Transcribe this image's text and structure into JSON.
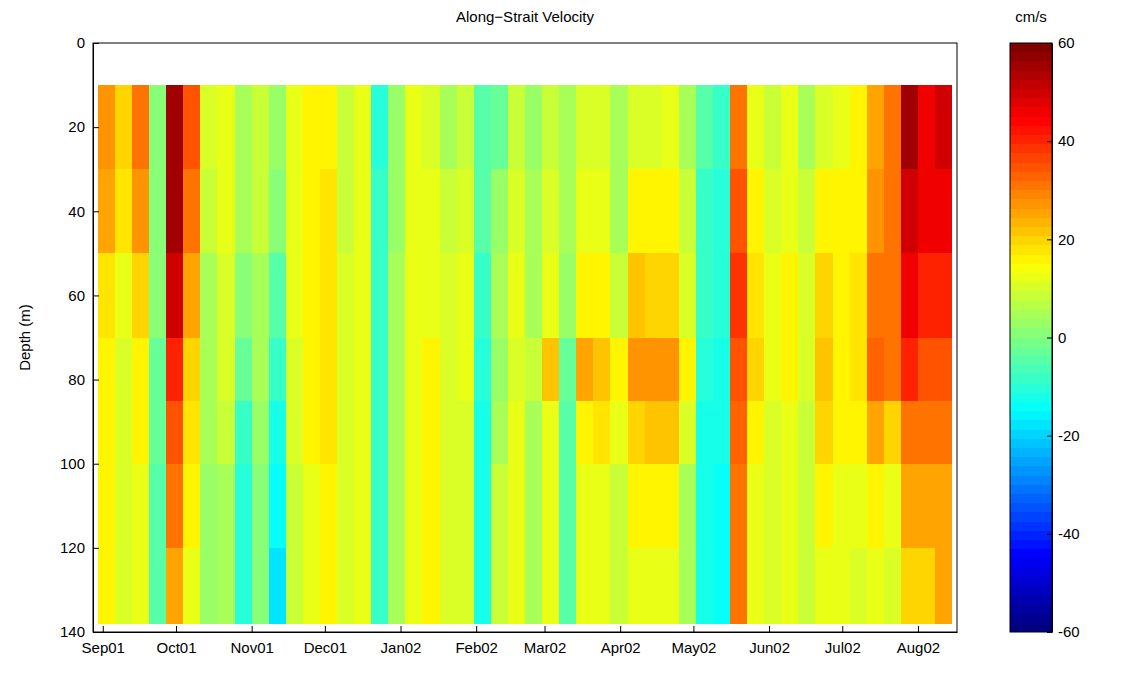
{
  "chart_data": {
    "type": "heatmap",
    "title": "Along−Strait Velocity",
    "y_label": "Depth (m)",
    "x": [
      "2001-08-30",
      "2001-09-06",
      "2001-09-13",
      "2001-09-20",
      "2001-09-27",
      "2001-10-04",
      "2001-10-11",
      "2001-10-18",
      "2001-10-25",
      "2001-11-01",
      "2001-11-08",
      "2001-11-15",
      "2001-11-22",
      "2001-11-29",
      "2001-12-06",
      "2001-12-13",
      "2001-12-20",
      "2001-12-27",
      "2002-01-03",
      "2002-01-10",
      "2002-01-17",
      "2002-01-24",
      "2002-01-31",
      "2002-02-07",
      "2002-02-14",
      "2002-02-21",
      "2002-02-28",
      "2002-03-07",
      "2002-03-14",
      "2002-03-21",
      "2002-03-28",
      "2002-04-04",
      "2002-04-11",
      "2002-04-18",
      "2002-04-25",
      "2002-05-02",
      "2002-05-09",
      "2002-05-16",
      "2002-05-23",
      "2002-05-30",
      "2002-06-06",
      "2002-06-13",
      "2002-06-20",
      "2002-06-27",
      "2002-07-04",
      "2002-07-11",
      "2002-07-18",
      "2002-07-25",
      "2002-08-01",
      "2002-08-08",
      "2002-08-15"
    ],
    "y": [
      10,
      30,
      50,
      70,
      85,
      100,
      120,
      138
    ],
    "z": [
      [
        28,
        25,
        18,
        15,
        15,
        15,
        15
      ],
      [
        20,
        18,
        12,
        10,
        10,
        10,
        10
      ],
      [
        30,
        28,
        20,
        15,
        15,
        12,
        12
      ],
      [
        0,
        0,
        0,
        -3,
        -3,
        -5,
        -5
      ],
      [
        55,
        55,
        50,
        40,
        35,
        30,
        25
      ],
      [
        35,
        30,
        25,
        20,
        18,
        15,
        12
      ],
      [
        10,
        8,
        5,
        5,
        5,
        3,
        3
      ],
      [
        12,
        12,
        10,
        10,
        8,
        5,
        5
      ],
      [
        5,
        5,
        0,
        -3,
        -8,
        -10,
        -10
      ],
      [
        8,
        8,
        5,
        5,
        3,
        0,
        0
      ],
      [
        3,
        0,
        -5,
        -8,
        -12,
        -15,
        -18
      ],
      [
        12,
        12,
        12,
        10,
        10,
        8,
        8
      ],
      [
        15,
        15,
        15,
        15,
        15,
        12,
        12
      ],
      [
        15,
        18,
        18,
        18,
        18,
        15,
        15
      ],
      [
        8,
        8,
        10,
        10,
        10,
        10,
        10
      ],
      [
        12,
        12,
        12,
        12,
        12,
        12,
        12
      ],
      [
        -10,
        -8,
        -8,
        -8,
        -8,
        -8,
        -8
      ],
      [
        3,
        3,
        5,
        5,
        5,
        5,
        5
      ],
      [
        12,
        12,
        12,
        12,
        12,
        12,
        12
      ],
      [
        10,
        12,
        12,
        15,
        15,
        15,
        15
      ],
      [
        5,
        8,
        10,
        10,
        10,
        10,
        10
      ],
      [
        8,
        10,
        12,
        12,
        10,
        10,
        10
      ],
      [
        -5,
        -5,
        -8,
        -10,
        -12,
        -12,
        -12
      ],
      [
        -3,
        3,
        5,
        3,
        5,
        8,
        8
      ],
      [
        8,
        10,
        12,
        10,
        12,
        12,
        12
      ],
      [
        3,
        5,
        5,
        8,
        5,
        5,
        5
      ],
      [
        8,
        10,
        12,
        22,
        12,
        12,
        12
      ],
      [
        5,
        5,
        3,
        -3,
        -5,
        -5,
        -5
      ],
      [
        10,
        12,
        15,
        25,
        15,
        12,
        12
      ],
      [
        10,
        12,
        15,
        22,
        18,
        12,
        12
      ],
      [
        5,
        5,
        8,
        15,
        12,
        8,
        8
      ],
      [
        10,
        15,
        22,
        28,
        20,
        15,
        12
      ],
      [
        10,
        15,
        20,
        28,
        22,
        15,
        12
      ],
      [
        12,
        15,
        20,
        28,
        22,
        15,
        12
      ],
      [
        5,
        8,
        10,
        15,
        10,
        5,
        5
      ],
      [
        -5,
        -8,
        -8,
        -10,
        -12,
        -12,
        -12
      ],
      [
        -8,
        -10,
        -10,
        -12,
        -12,
        -15,
        -15
      ],
      [
        30,
        35,
        38,
        35,
        32,
        30,
        30
      ],
      [
        12,
        15,
        18,
        20,
        15,
        12,
        12
      ],
      [
        8,
        10,
        12,
        12,
        10,
        10,
        10
      ],
      [
        12,
        12,
        15,
        15,
        12,
        12,
        12
      ],
      [
        5,
        8,
        10,
        10,
        8,
        8,
        8
      ],
      [
        10,
        15,
        20,
        22,
        20,
        15,
        12
      ],
      [
        12,
        15,
        15,
        15,
        15,
        12,
        12
      ],
      [
        15,
        15,
        18,
        18,
        15,
        12,
        10
      ],
      [
        25,
        28,
        30,
        32,
        25,
        15,
        12
      ],
      [
        30,
        30,
        30,
        30,
        20,
        12,
        10
      ],
      [
        55,
        50,
        45,
        40,
        30,
        25,
        20
      ],
      [
        45,
        45,
        40,
        35,
        30,
        25,
        20
      ],
      [
        50,
        45,
        40,
        35,
        30,
        25,
        25
      ]
    ],
    "xlim": [
      "2001-08-28",
      "2002-08-17"
    ],
    "xticks": [
      {
        "value": "2001-09-01",
        "label": "Sep01"
      },
      {
        "value": "2001-10-01",
        "label": "Oct01"
      },
      {
        "value": "2001-11-01",
        "label": "Nov01"
      },
      {
        "value": "2001-12-01",
        "label": "Dec01"
      },
      {
        "value": "2002-01-01",
        "label": "Jan02"
      },
      {
        "value": "2002-02-01",
        "label": "Feb02"
      },
      {
        "value": "2002-03-01",
        "label": "Mar02"
      },
      {
        "value": "2002-04-01",
        "label": "Apr02"
      },
      {
        "value": "2002-05-01",
        "label": "May02"
      },
      {
        "value": "2002-06-01",
        "label": "Jun02"
      },
      {
        "value": "2002-07-01",
        "label": "Jul02"
      },
      {
        "value": "2002-08-01",
        "label": "Aug02"
      }
    ],
    "ylim": [
      0,
      140
    ],
    "yticks": [
      0,
      20,
      40,
      60,
      80,
      100,
      120,
      140
    ],
    "colorbar": {
      "label": "cm/s",
      "lim": [
        -60,
        60
      ],
      "ticks": [
        -60,
        -40,
        -20,
        0,
        20,
        40,
        60
      ]
    }
  }
}
